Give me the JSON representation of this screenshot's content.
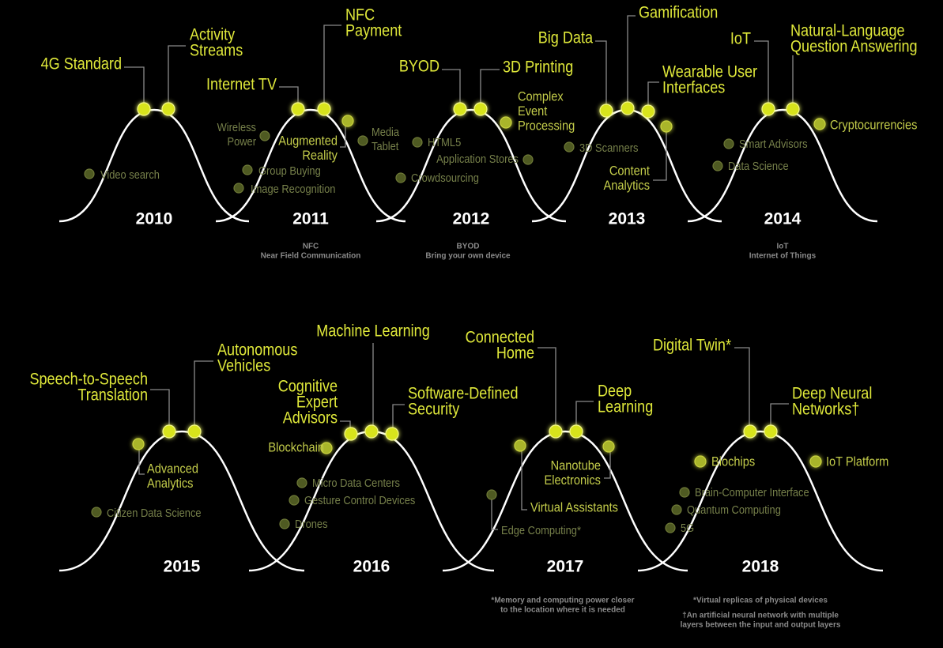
{
  "panels": [
    {
      "year": "2010",
      "items": [
        {
          "lines": [
            "4G Standard"
          ]
        },
        {
          "lines": [
            "Activity",
            "Streams"
          ]
        },
        {
          "lines": [
            "Video search"
          ]
        }
      ]
    },
    {
      "year": "2011",
      "items": [
        {
          "lines": [
            "Internet TV"
          ]
        },
        {
          "lines": [
            "NFC",
            "Payment"
          ]
        },
        {
          "lines": [
            "Wireless",
            "Power"
          ]
        },
        {
          "lines": [
            "Augmented",
            "Reality"
          ]
        },
        {
          "lines": [
            "Media",
            "Tablet"
          ]
        },
        {
          "lines": [
            "Group Buying"
          ]
        },
        {
          "lines": [
            "Image Recognition"
          ]
        }
      ],
      "notes": [
        [
          "NFC",
          "Near Field Communication"
        ]
      ]
    },
    {
      "year": "2012",
      "items": [
        {
          "lines": [
            "BYOD"
          ]
        },
        {
          "lines": [
            "3D Printing"
          ]
        },
        {
          "lines": [
            "Complex",
            "Event",
            "Processing"
          ]
        },
        {
          "lines": [
            "HTML5"
          ]
        },
        {
          "lines": [
            "Application Stores"
          ]
        },
        {
          "lines": [
            "Crowdsourcing"
          ]
        }
      ],
      "notes": [
        [
          "BYOD",
          "Bring your own device"
        ]
      ]
    },
    {
      "year": "2013",
      "items": [
        {
          "lines": [
            "Big Data"
          ]
        },
        {
          "lines": [
            "Gamification"
          ]
        },
        {
          "lines": [
            "Wearable User",
            "Interfaces"
          ]
        },
        {
          "lines": [
            "Content",
            "Analytics"
          ]
        },
        {
          "lines": [
            "3D Scanners"
          ]
        }
      ]
    },
    {
      "year": "2014",
      "items": [
        {
          "lines": [
            "IoT"
          ]
        },
        {
          "lines": [
            "Natural-Language",
            "Question Answering"
          ]
        },
        {
          "lines": [
            "Cryptocurrencies"
          ]
        },
        {
          "lines": [
            "Smart Advisors"
          ]
        },
        {
          "lines": [
            "Data Science"
          ]
        }
      ],
      "notes": [
        [
          "IoT",
          "Internet of Things"
        ]
      ]
    },
    {
      "year": "2015",
      "items": [
        {
          "lines": [
            "Speech-to-Speech",
            "Translation"
          ]
        },
        {
          "lines": [
            "Autonomous",
            "Vehicles"
          ]
        },
        {
          "lines": [
            "Advanced",
            "Analytics"
          ]
        },
        {
          "lines": [
            "Citizen Data Science"
          ]
        }
      ]
    },
    {
      "year": "2016",
      "items": [
        {
          "lines": [
            "Machine Learning"
          ]
        },
        {
          "lines": [
            "Cognitive",
            "Expert",
            "Advisors"
          ]
        },
        {
          "lines": [
            "Software-Defined",
            "Security"
          ]
        },
        {
          "lines": [
            "Blockchain"
          ]
        },
        {
          "lines": [
            "Micro Data Centers"
          ]
        },
        {
          "lines": [
            "Gesture Control Devices"
          ]
        },
        {
          "lines": [
            "Drones"
          ]
        }
      ]
    },
    {
      "year": "2017",
      "items": [
        {
          "lines": [
            "Connected",
            "Home"
          ]
        },
        {
          "lines": [
            "Deep",
            "Learning"
          ]
        },
        {
          "lines": [
            "Nanotube",
            "Electronics"
          ]
        },
        {
          "lines": [
            "Virtual Assistants"
          ]
        },
        {
          "lines": [
            "Edge Computing*"
          ]
        }
      ],
      "notes": [
        [
          "*Memory and computing power closer",
          "to the location where it is needed"
        ]
      ]
    },
    {
      "year": "2018",
      "items": [
        {
          "lines": [
            "Digital Twin*"
          ]
        },
        {
          "lines": [
            "Deep Neural",
            "Networks†"
          ]
        },
        {
          "lines": [
            "Biochips"
          ]
        },
        {
          "lines": [
            "IoT Platform"
          ]
        },
        {
          "lines": [
            "Brain-Computer Interface"
          ]
        },
        {
          "lines": [
            "Quantum Computing"
          ]
        },
        {
          "lines": [
            "5G"
          ]
        }
      ],
      "notes": [
        [
          "*Virtual replicas of physical devices"
        ],
        [
          "†An artificial neural network with multiple",
          "layers between the input and output layers"
        ]
      ]
    }
  ]
}
